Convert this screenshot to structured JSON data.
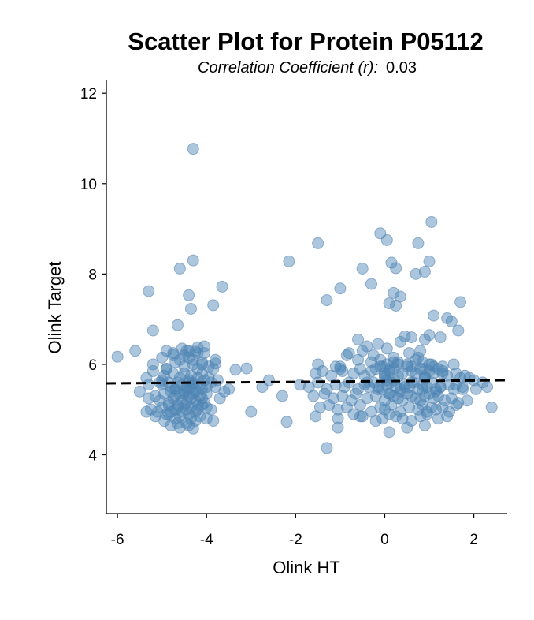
{
  "chart_data": {
    "type": "scatter",
    "title": "Scatter Plot for Protein P05112",
    "subtitle_label": "Correlation Coefficient (r):",
    "subtitle_value": "0.03",
    "xlabel": "Olink HT",
    "ylabel": "Olink Target",
    "xlim": [
      -6.25,
      2.75
    ],
    "ylim": [
      2.7,
      12.3
    ],
    "xticks": [
      -6,
      -4,
      -2,
      0,
      2
    ],
    "yticks": [
      4,
      6,
      8,
      10,
      12
    ],
    "grid": false,
    "marker_color": "#4682b4",
    "marker_alpha": 0.45,
    "trend_line": {
      "style": "dashed",
      "color": "#000000",
      "x": [
        -6.25,
        2.75
      ],
      "y": [
        5.58,
        5.65
      ]
    },
    "points": {
      "x": [
        -4.3,
        -6.0,
        -5.6,
        -5.3,
        -5.2,
        -4.65,
        -4.4,
        -4.35,
        -4.3,
        -3.85,
        -3.65,
        -4.6,
        -4.2,
        -4.45,
        -4.25,
        -4.3,
        -4.1,
        -3.95,
        -3.8,
        -3.8,
        -3.35,
        -3.1,
        -2.6,
        -2.75,
        -2.3,
        -2.15,
        -3.0,
        -2.2,
        -5.5,
        -5.35,
        -5.2,
        -5.05,
        -5.0,
        -4.95,
        -4.9,
        -4.85,
        -4.8,
        -4.75,
        -4.7,
        -4.65,
        -4.6,
        -4.55,
        -4.5,
        -4.45,
        -4.4,
        -4.35,
        -4.3,
        -4.25,
        -4.2,
        -4.15,
        -4.1,
        -4.05,
        -4.0,
        -3.95,
        -3.9,
        -3.85,
        -3.8,
        -3.75,
        -3.6,
        -3.5,
        -5.3,
        -5.15,
        -5.05,
        -4.95,
        -4.85,
        -4.8,
        -4.75,
        -4.7,
        -4.65,
        -4.6,
        -4.55,
        -4.5,
        -4.45,
        -4.4,
        -4.35,
        -4.3,
        -4.25,
        -4.2,
        -4.15,
        -4.1,
        -4.05,
        -4.0,
        -5.25,
        -5.1,
        -5.0,
        -4.9,
        -4.85,
        -4.8,
        -4.7,
        -4.65,
        -4.55,
        -4.5,
        -4.45,
        -4.4,
        -4.35,
        -4.25,
        -4.2,
        -4.1,
        -4.0,
        -3.9,
        -5.2,
        -5.0,
        -4.9,
        -4.75,
        -4.7,
        -4.6,
        -4.5,
        -4.4,
        -4.3,
        -4.2,
        -4.1,
        -4.05,
        -5.35,
        -5.15,
        -4.95,
        -4.85,
        -4.7,
        -4.6,
        -4.45,
        -4.35,
        -4.25,
        -4.15,
        -4.0,
        -3.85,
        -4.9,
        -4.75,
        -4.55,
        -4.5,
        -4.4,
        -4.2,
        -4.05,
        -4.8,
        -4.65,
        -4.6,
        -4.4,
        -4.3,
        -4.45,
        -4.3,
        -5.3,
        -5.0,
        -4.7,
        -4.5,
        -4.4,
        -4.35,
        -4.25,
        -4.1,
        -3.7,
        -1.5,
        -1.3,
        -1.0,
        -0.5,
        -0.3,
        -0.1,
        0.05,
        0.15,
        0.25,
        0.35,
        0.7,
        0.75,
        0.9,
        1.0,
        1.05,
        1.1,
        1.4,
        1.5,
        1.7,
        -0.85,
        -0.4,
        0.1,
        0.2,
        -0.6,
        -0.15,
        0.25,
        0.45,
        0.6,
        0.9,
        1.0,
        1.25,
        1.65,
        -0.8,
        -0.5,
        -0.25,
        0.05,
        0.2,
        0.35,
        0.55,
        0.8,
        -1.55,
        -1.4,
        -1.2,
        -1.1,
        -1.0,
        -0.95,
        -0.7,
        -0.55,
        -0.45,
        -0.3,
        -0.2,
        -0.1,
        0.0,
        0.1,
        0.2,
        0.3,
        0.4,
        0.5,
        0.6,
        0.7,
        0.8,
        0.9,
        1.0,
        1.1,
        1.2,
        1.3,
        1.4,
        1.6,
        1.7,
        1.8,
        1.9,
        2.0,
        2.2,
        -1.9,
        -1.7,
        -1.5,
        -1.3,
        -1.1,
        -0.9,
        -0.8,
        -0.6,
        -0.45,
        -0.35,
        -0.25,
        -0.15,
        -0.05,
        0.05,
        0.15,
        0.25,
        0.35,
        0.45,
        0.55,
        0.65,
        0.75,
        0.85,
        0.95,
        1.05,
        1.15,
        1.25,
        1.45,
        1.55,
        1.75,
        2.05,
        2.3,
        -1.6,
        -1.35,
        -1.15,
        -0.95,
        -0.75,
        -0.65,
        -0.4,
        -0.2,
        0.0,
        0.1,
        0.2,
        0.3,
        0.4,
        0.5,
        0.6,
        0.7,
        0.8,
        0.9,
        1.0,
        1.1,
        1.2,
        1.35,
        1.5,
        1.65,
        1.85,
        -1.45,
        -1.25,
        -1.05,
        -0.85,
        -0.55,
        -0.3,
        -0.1,
        0.0,
        0.15,
        0.35,
        0.55,
        0.75,
        0.85,
        0.95,
        1.05,
        1.15,
        1.3,
        1.45,
        1.6,
        -1.55,
        -1.05,
        -0.7,
        -0.5,
        -0.2,
        -0.05,
        0.1,
        0.25,
        0.4,
        0.6,
        0.8,
        0.95,
        1.2,
        1.4,
        -0.3,
        -0.1,
        0.05,
        0.2,
        0.5,
        0.7,
        0.85,
        1.0,
        -0.05,
        0.1,
        0.3,
        0.6,
        0.85,
        1.05,
        1.3,
        0.1,
        0.5,
        0.9,
        -1.5,
        -1.0,
        -0.6,
        0.3,
        0.75,
        1.1,
        1.55,
        0.0,
        0.2,
        0.9,
        2.4,
        -1.3,
        -1.05,
        -0.55,
        -0.4,
        0.0,
        0.05,
        0.6,
        0.9,
        1.3,
        1.6,
        -0.15,
        0.1,
        0.35,
        0.45,
        0.85,
        1.15,
        1.25,
        1.75
      ],
      "y": [
        10.77,
        6.17,
        6.3,
        7.62,
        6.75,
        6.87,
        7.53,
        7.23,
        8.3,
        7.31,
        7.72,
        8.12,
        6.38,
        6.3,
        6.28,
        6.1,
        6.0,
        5.95,
        6.02,
        6.1,
        5.88,
        5.91,
        5.65,
        5.5,
        5.3,
        8.28,
        4.95,
        4.73,
        5.4,
        5.7,
        5.85,
        5.6,
        5.55,
        5.75,
        5.9,
        5.6,
        5.5,
        5.8,
        5.45,
        5.6,
        5.7,
        5.55,
        5.8,
        5.5,
        5.65,
        5.75,
        5.6,
        5.45,
        5.7,
        5.55,
        5.8,
        5.65,
        5.5,
        5.7,
        5.6,
        5.9,
        5.5,
        5.65,
        5.4,
        5.45,
        5.25,
        5.3,
        5.2,
        5.35,
        5.15,
        5.4,
        5.25,
        5.3,
        5.1,
        5.35,
        5.2,
        5.4,
        5.15,
        5.3,
        5.25,
        5.35,
        5.2,
        5.1,
        5.3,
        5.25,
        5.15,
        5.35,
        5.0,
        4.95,
        5.05,
        4.9,
        5.1,
        4.95,
        5.0,
        5.05,
        4.95,
        5.1,
        5.0,
        4.9,
        5.05,
        4.95,
        5.0,
        5.1,
        5.05,
        5.0,
        6.0,
        6.15,
        5.9,
        6.2,
        6.05,
        6.1,
        5.95,
        6.15,
        6.0,
        5.9,
        6.05,
        6.25,
        4.95,
        4.85,
        4.75,
        4.9,
        4.8,
        4.85,
        4.7,
        4.8,
        4.75,
        4.85,
        4.8,
        4.75,
        6.3,
        6.25,
        6.35,
        6.2,
        6.3,
        6.25,
        6.4,
        4.65,
        4.7,
        4.6,
        4.65,
        4.58,
        5.45,
        5.55,
        5.55,
        5.65,
        5.45,
        5.35,
        5.6,
        5.5,
        5.4,
        5.45,
        5.25,
        8.68,
        7.42,
        7.68,
        8.12,
        7.78,
        8.9,
        8.75,
        8.25,
        8.13,
        7.5,
        8.0,
        8.68,
        8.05,
        8.28,
        9.15,
        7.08,
        7.02,
        6.95,
        7.38,
        6.2,
        6.4,
        7.35,
        7.58,
        6.55,
        6.45,
        7.3,
        6.62,
        6.6,
        6.55,
        6.65,
        6.6,
        6.75,
        6.25,
        6.3,
        6.2,
        6.35,
        6.15,
        6.5,
        6.25,
        6.3,
        5.8,
        5.85,
        5.75,
        5.95,
        5.9,
        5.85,
        5.8,
        5.9,
        5.75,
        5.85,
        5.9,
        5.95,
        5.8,
        5.85,
        5.9,
        5.75,
        5.8,
        5.95,
        5.85,
        5.8,
        5.9,
        5.75,
        5.85,
        5.8,
        5.9,
        5.85,
        5.75,
        5.8,
        5.7,
        5.75,
        5.7,
        5.65,
        5.6,
        5.55,
        5.5,
        5.6,
        5.45,
        5.55,
        5.5,
        5.6,
        5.45,
        5.55,
        5.5,
        5.6,
        5.5,
        5.45,
        5.55,
        5.6,
        5.5,
        5.45,
        5.55,
        5.5,
        5.6,
        5.45,
        5.55,
        5.5,
        5.6,
        5.45,
        5.5,
        5.55,
        5.45,
        5.5,
        5.45,
        5.5,
        5.3,
        5.35,
        5.25,
        5.3,
        5.2,
        5.35,
        5.25,
        5.3,
        5.2,
        5.35,
        5.3,
        5.25,
        5.2,
        5.35,
        5.3,
        5.25,
        5.2,
        5.3,
        5.35,
        5.25,
        5.3,
        5.2,
        5.25,
        5.15,
        5.2,
        5.05,
        5.1,
        5.0,
        5.05,
        5.1,
        4.95,
        5.05,
        5.0,
        5.1,
        4.95,
        5.05,
        5.0,
        5.1,
        4.95,
        5.05,
        5.0,
        5.05,
        4.95,
        5.1,
        4.85,
        4.8,
        4.9,
        4.85,
        4.75,
        4.8,
        4.9,
        4.85,
        4.8,
        4.75,
        4.85,
        4.9,
        4.8,
        4.85,
        6.05,
        6.1,
        6.0,
        6.05,
        6.0,
        6.1,
        6.05,
        6.0,
        5.95,
        5.9,
        6.0,
        5.95,
        5.9,
        6.0,
        5.95,
        4.5,
        4.6,
        4.65,
        6.0,
        5.95,
        6.1,
        6.05,
        6.15,
        5.95,
        6.0,
        5.7,
        5.65,
        5.7,
        5.05,
        4.15,
        4.6,
        4.85,
        5.6,
        5.75,
        5.65,
        5.6,
        5.7,
        5.8,
        5.55,
        5.45,
        5.35,
        5.4,
        5.5,
        5.45,
        5.4,
        5.5,
        5.45
      ]
    }
  }
}
